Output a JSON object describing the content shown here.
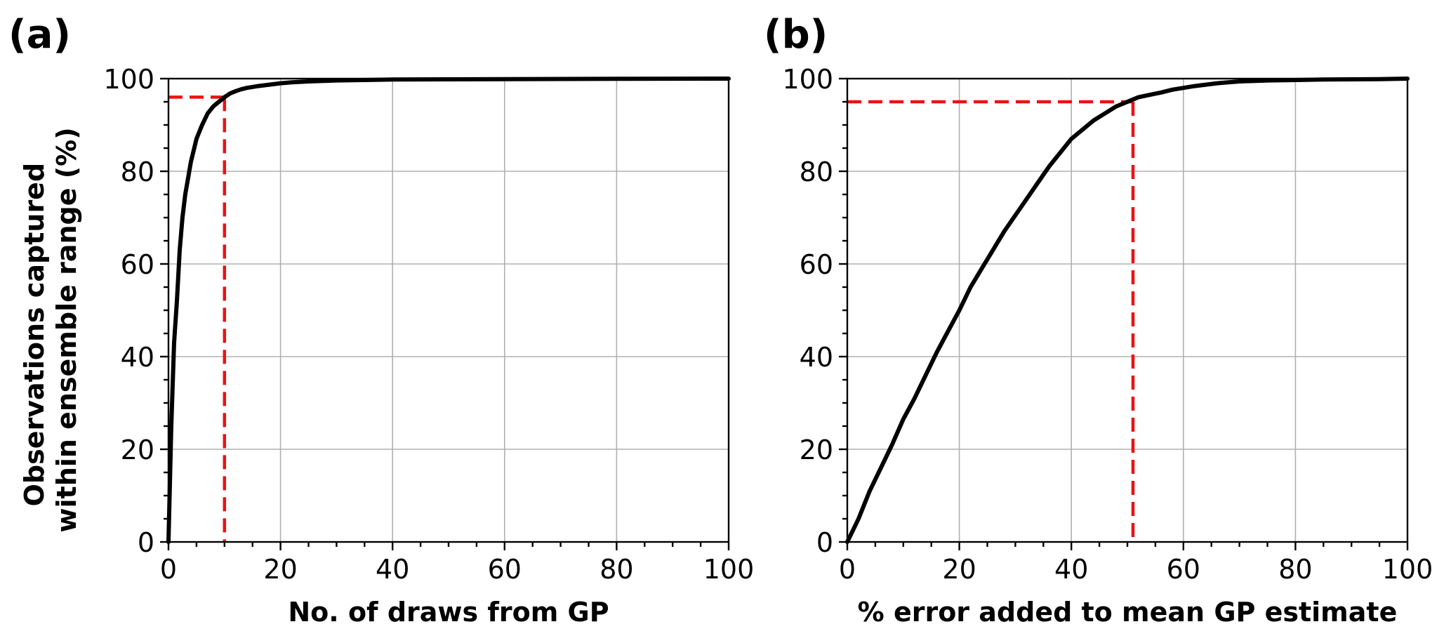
{
  "figure": {
    "ylabel_line1": "Observations captured",
    "ylabel_line2": "within ensemble range (%)"
  },
  "chart_data": [
    {
      "type": "line",
      "panel_label": "(a)",
      "xlabel": "No. of draws from GP",
      "xlim": [
        0,
        100
      ],
      "ylim": [
        0,
        100
      ],
      "xticks": [
        0,
        20,
        40,
        60,
        80,
        100
      ],
      "yticks": [
        0,
        20,
        40,
        60,
        80,
        100
      ],
      "grid": true,
      "x": [
        0,
        0.5,
        1,
        1.5,
        2,
        2.5,
        3,
        4,
        5,
        6,
        7,
        8,
        9,
        10,
        11,
        12,
        13,
        14,
        16,
        18,
        20,
        22,
        25,
        30,
        35,
        40,
        50,
        60,
        80,
        100
      ],
      "y": [
        0,
        25,
        43,
        52,
        63,
        70,
        75,
        82,
        87,
        90,
        92.5,
        94,
        95,
        96,
        96.8,
        97.3,
        97.7,
        98,
        98.4,
        98.7,
        99,
        99.2,
        99.4,
        99.6,
        99.7,
        99.8,
        99.85,
        99.9,
        99.95,
        100
      ],
      "reference": {
        "x": 10,
        "y": 96
      }
    },
    {
      "type": "line",
      "panel_label": "(b)",
      "xlabel": "% error added to mean GP estimate",
      "xlim": [
        0,
        100
      ],
      "ylim": [
        0,
        100
      ],
      "xticks": [
        0,
        20,
        40,
        60,
        80,
        100
      ],
      "yticks": [
        0,
        20,
        40,
        60,
        80,
        100
      ],
      "grid": true,
      "x": [
        0,
        2,
        4,
        6,
        8,
        10,
        12,
        14,
        16,
        18,
        20,
        22,
        24,
        26,
        28,
        30,
        32,
        34,
        36,
        38,
        40,
        42,
        44,
        46,
        48,
        50,
        51,
        52,
        54,
        56,
        58,
        60,
        62,
        64,
        66,
        68,
        70,
        75,
        80,
        85,
        90,
        95,
        100
      ],
      "y": [
        0,
        5,
        11,
        16,
        21,
        26.5,
        31,
        36,
        41,
        45.5,
        50,
        55,
        59,
        63,
        67,
        70.5,
        74,
        77.5,
        81,
        84,
        87,
        89,
        91,
        92.5,
        94,
        95,
        95.5,
        96,
        96.5,
        97,
        97.6,
        98,
        98.4,
        98.7,
        99,
        99.2,
        99.4,
        99.6,
        99.7,
        99.8,
        99.85,
        99.9,
        100
      ],
      "reference": {
        "x": 51,
        "y": 95
      }
    }
  ]
}
